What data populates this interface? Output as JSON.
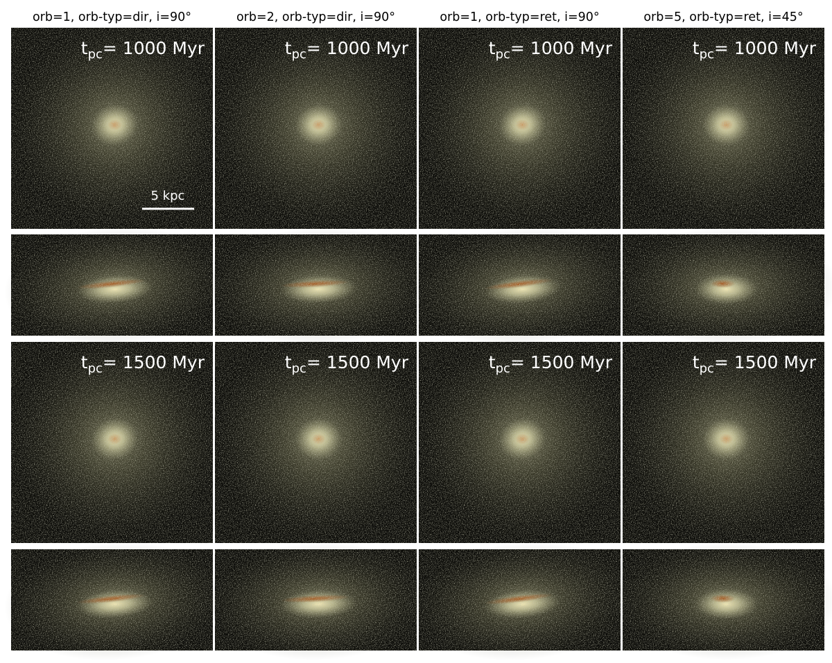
{
  "column_headers": [
    "orb=1, orb-typ=dir, i=90°",
    "orb=2, orb-typ=dir, i=90°",
    "orb=1, orb-typ=ret, i=90°",
    "orb=5, orb-typ=ret, i=45°"
  ],
  "face_on_rows": [
    {
      "time_labels": [
        {
          "symbol": "t",
          "subscript": "pc",
          "text": "= 1000 Myr"
        },
        {
          "symbol": "t",
          "subscript": "pc",
          "text": "= 1000 Myr"
        },
        {
          "symbol": "t",
          "subscript": "pc",
          "text": "= 1000 Myr"
        },
        {
          "symbol": "t",
          "subscript": "pc",
          "text": "= 1000 Myr"
        }
      ]
    },
    {
      "time_labels": [
        {
          "symbol": "t",
          "subscript": "pc",
          "text": "= 1500 Myr"
        },
        {
          "symbol": "t",
          "subscript": "pc",
          "text": "= 1500 Myr"
        },
        {
          "symbol": "t",
          "subscript": "pc",
          "text": "= 1500 Myr"
        },
        {
          "symbol": "t",
          "subscript": "pc",
          "text": "= 1500 Myr"
        }
      ]
    }
  ],
  "scale_bar": {
    "label": "5 kpc"
  }
}
